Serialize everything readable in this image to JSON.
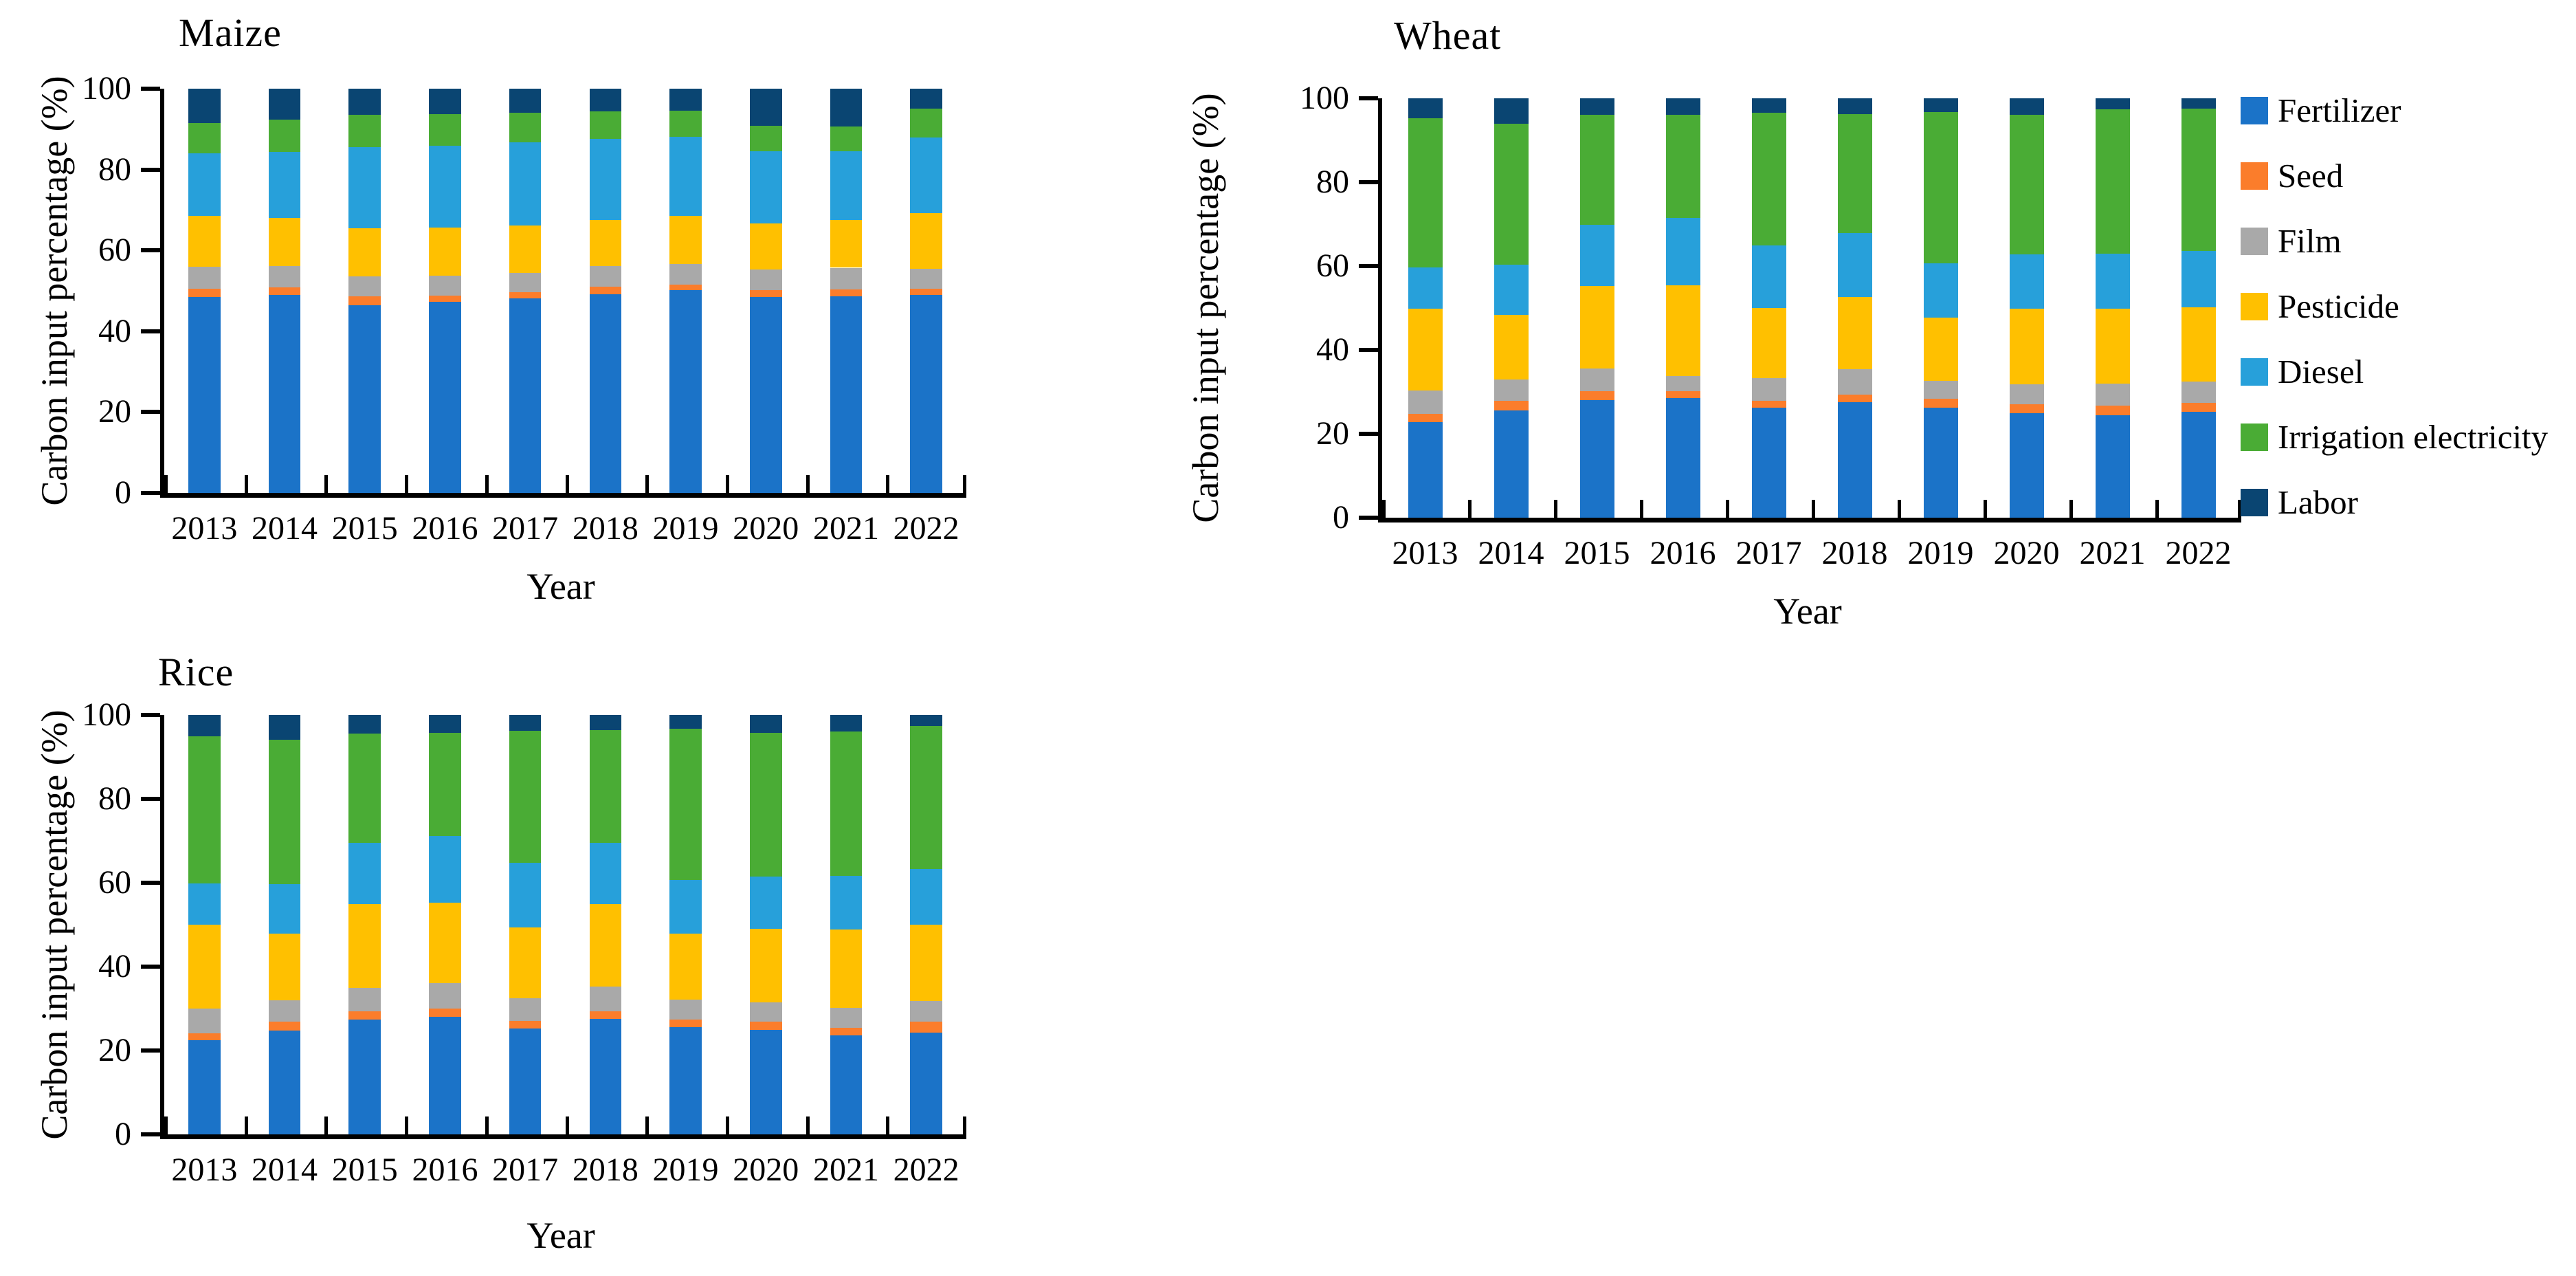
{
  "figure": {
    "background": "#FFFFFF",
    "axis_color": "#000000",
    "font_style": "serif"
  },
  "chart_data": [
    {
      "type": "bar",
      "stacked": true,
      "title": "Maize",
      "xlabel": "Year",
      "ylabel": "Carbon input percentage (%)",
      "ylim": [
        0,
        100
      ],
      "yticks": [
        0,
        20,
        40,
        60,
        80,
        100
      ],
      "grid": false,
      "legend_position": "none",
      "categories": [
        "2013",
        "2014",
        "2015",
        "2016",
        "2017",
        "2018",
        "2019",
        "2020",
        "2021",
        "2022"
      ],
      "series": [
        {
          "name": "Fertilizer",
          "color": "#1B73C8",
          "values": [
            48.5,
            49.0,
            46.5,
            47.2,
            48.2,
            49.1,
            50.1,
            48.5,
            48.7,
            48.9
          ]
        },
        {
          "name": "Seed",
          "color": "#FB7D2B",
          "values": [
            2.0,
            1.9,
            2.1,
            1.6,
            1.5,
            1.9,
            1.4,
            1.7,
            1.7,
            1.6
          ]
        },
        {
          "name": "Film",
          "color": "#A9A9A9",
          "values": [
            5.5,
            5.3,
            5.0,
            4.9,
            4.7,
            5.1,
            5.1,
            5.0,
            5.3,
            5.0
          ]
        },
        {
          "name": "Pesticide",
          "color": "#FFC000",
          "values": [
            12.5,
            11.8,
            11.9,
            11.9,
            11.8,
            11.5,
            12.0,
            11.4,
            11.9,
            13.8
          ]
        },
        {
          "name": "Diesel",
          "color": "#27A0DA",
          "values": [
            15.5,
            16.4,
            20.1,
            20.3,
            20.5,
            20.0,
            19.5,
            17.9,
            16.9,
            18.6
          ]
        },
        {
          "name": "Irrigation electricity",
          "color": "#4AAC35",
          "values": [
            7.5,
            8.0,
            8.0,
            7.8,
            7.3,
            6.8,
            6.4,
            6.4,
            6.2,
            7.1
          ]
        },
        {
          "name": "Labor",
          "color": "#0A4572",
          "values": [
            8.5,
            7.6,
            6.4,
            6.3,
            6.0,
            5.6,
            5.5,
            9.1,
            9.3,
            5.0
          ]
        }
      ]
    },
    {
      "type": "bar",
      "stacked": true,
      "title": "Wheat",
      "xlabel": "Year",
      "ylabel": "Carbon input percentage (%)",
      "ylim": [
        0,
        100
      ],
      "yticks": [
        0,
        20,
        40,
        60,
        80,
        100
      ],
      "grid": false,
      "legend_position": "right",
      "categories": [
        "2013",
        "2014",
        "2015",
        "2016",
        "2017",
        "2018",
        "2019",
        "2020",
        "2021",
        "2022"
      ],
      "series": [
        {
          "name": "Fertilizer",
          "color": "#1B73C8",
          "values": [
            22.8,
            25.5,
            28.0,
            28.6,
            26.2,
            27.5,
            26.2,
            25.0,
            24.5,
            25.2
          ]
        },
        {
          "name": "Seed",
          "color": "#FB7D2B",
          "values": [
            2.0,
            2.3,
            2.1,
            1.6,
            1.7,
            1.9,
            2.1,
            2.1,
            2.3,
            2.1
          ]
        },
        {
          "name": "Film",
          "color": "#A9A9A9",
          "values": [
            5.5,
            5.2,
            5.4,
            3.6,
            5.4,
            6.0,
            4.3,
            4.7,
            5.1,
            5.1
          ]
        },
        {
          "name": "Pesticide",
          "color": "#FFC000",
          "values": [
            19.5,
            15.3,
            19.8,
            21.6,
            16.7,
            17.2,
            15.1,
            18.1,
            18.0,
            17.8
          ]
        },
        {
          "name": "Diesel",
          "color": "#27A0DA",
          "values": [
            9.8,
            12.0,
            14.6,
            16.0,
            14.9,
            15.2,
            13.0,
            12.9,
            13.0,
            13.4
          ]
        },
        {
          "name": "Irrigation electricity",
          "color": "#4AAC35",
          "values": [
            35.6,
            33.7,
            26.1,
            24.6,
            31.6,
            28.5,
            36.0,
            33.3,
            34.5,
            33.9
          ]
        },
        {
          "name": "Labor",
          "color": "#0A4572",
          "values": [
            4.8,
            6.0,
            4.0,
            4.0,
            3.5,
            3.7,
            3.3,
            3.9,
            2.6,
            2.5
          ]
        }
      ]
    },
    {
      "type": "bar",
      "stacked": true,
      "title": "Rice",
      "xlabel": "Year",
      "ylabel": "Carbon input percentage (%)",
      "ylim": [
        0,
        100
      ],
      "yticks": [
        0,
        20,
        40,
        60,
        80,
        100
      ],
      "grid": false,
      "legend_position": "none",
      "categories": [
        "2013",
        "2014",
        "2015",
        "2016",
        "2017",
        "2018",
        "2019",
        "2020",
        "2021",
        "2022"
      ],
      "series": [
        {
          "name": "Fertilizer",
          "color": "#1B73C8",
          "values": [
            22.4,
            24.8,
            27.3,
            28.1,
            25.3,
            27.6,
            25.5,
            24.9,
            23.6,
            24.2
          ]
        },
        {
          "name": "Seed",
          "color": "#FB7D2B",
          "values": [
            1.7,
            2.1,
            2.1,
            1.9,
            1.7,
            1.8,
            1.8,
            2.0,
            1.8,
            2.7
          ]
        },
        {
          "name": "Film",
          "color": "#A9A9A9",
          "values": [
            5.9,
            5.1,
            5.6,
            6.1,
            5.5,
            5.8,
            4.9,
            4.6,
            4.7,
            4.9
          ]
        },
        {
          "name": "Pesticide",
          "color": "#FFC000",
          "values": [
            20.0,
            15.8,
            20.0,
            19.2,
            16.8,
            19.7,
            15.6,
            17.5,
            18.7,
            18.2
          ]
        },
        {
          "name": "Diesel",
          "color": "#27A0DA",
          "values": [
            9.8,
            11.8,
            14.5,
            15.9,
            15.5,
            14.6,
            12.9,
            12.4,
            12.8,
            13.3
          ]
        },
        {
          "name": "Irrigation electricity",
          "color": "#4AAC35",
          "values": [
            35.1,
            34.5,
            26.1,
            24.6,
            31.5,
            26.9,
            36.1,
            34.4,
            34.4,
            34.0
          ]
        },
        {
          "name": "Labor",
          "color": "#0A4572",
          "values": [
            5.1,
            5.9,
            4.4,
            4.2,
            3.7,
            3.6,
            3.2,
            4.2,
            4.0,
            2.7
          ]
        }
      ]
    }
  ],
  "legend": {
    "source_chart": 1,
    "items": [
      "Fertilizer",
      "Seed",
      "Film",
      "Pesticide",
      "Diesel",
      "Irrigation electricity",
      "Labor"
    ]
  }
}
